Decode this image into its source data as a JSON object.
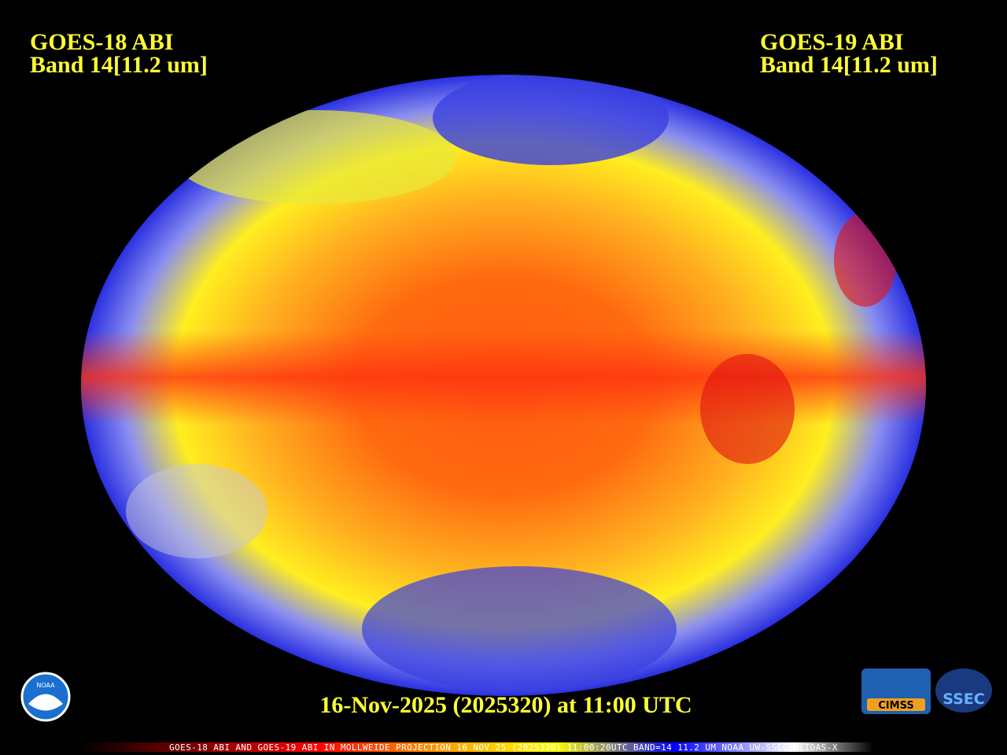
{
  "header": {
    "left": [
      "GOES-18 ABI",
      "Band 14[11.2 um]"
    ],
    "right": [
      "GOES-19 ABI",
      "Band 14[11.2 um]"
    ]
  },
  "footer": {
    "timestamp": "16-Nov-2025 (2025320) at 11:00 UTC"
  },
  "colorbar": {
    "caption": "GOES-18 ABI AND GOES-19 ABI IN MOLLWEIDE PROJECTION 16 NOV 25 (2025320) 11:00:20UTC BAND=14 11.2 UM NOAA UW-SSEC MCIDAS-X"
  },
  "logos": {
    "noaa": "NOAA",
    "cimss": "CIMSS",
    "ssec": "SSEC"
  }
}
